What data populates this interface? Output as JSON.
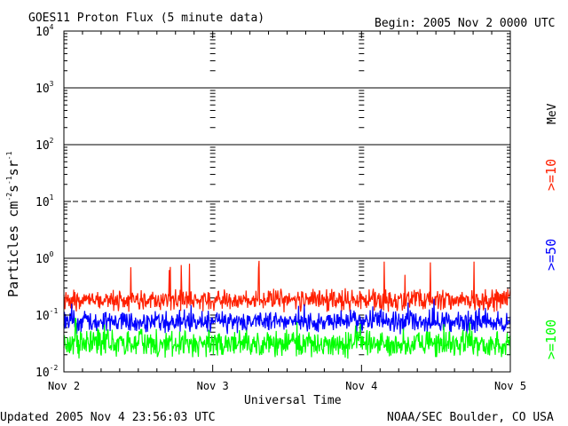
{
  "chart_data": {
    "type": "line",
    "title": "GOES11 Proton Flux (5 minute data)",
    "begin_label": "Begin: 2005 Nov 2 0000 UTC",
    "xlabel": "Universal Time",
    "ylabel": "Particles cm-2 s-1 sr-1",
    "ylabel_parts": {
      "base": "Particles cm",
      "exp1": "-2",
      "s": "s",
      "exp2": "-1",
      "sr": "sr",
      "exp3": "-1"
    },
    "y_scale": "log",
    "ylim": [
      0.01,
      10000
    ],
    "y_ticks": [
      {
        "base": "10",
        "exp": "-2",
        "value": 0.01
      },
      {
        "base": "10",
        "exp": "-1",
        "value": 0.1
      },
      {
        "base": "10",
        "exp": "0",
        "value": 1
      },
      {
        "base": "10",
        "exp": "1",
        "value": 10
      },
      {
        "base": "10",
        "exp": "2",
        "value": 100
      },
      {
        "base": "10",
        "exp": "3",
        "value": 1000
      },
      {
        "base": "10",
        "exp": "4",
        "value": 10000
      }
    ],
    "x_ticks": [
      "Nov 2",
      "Nov 3",
      "Nov 4",
      "Nov 5"
    ],
    "xlim_days": [
      0,
      3
    ],
    "threshold_lines": [
      {
        "value": 1,
        "style": "solid"
      },
      {
        "value": 10,
        "style": "dashed"
      },
      {
        "value": 100,
        "style": "solid"
      },
      {
        "value": 1000,
        "style": "solid"
      }
    ],
    "series": [
      {
        "name": ">=10",
        "color": "#ff2000",
        "level_range": [
          0.11,
          0.3
        ],
        "spike_max": 0.9
      },
      {
        "name": ">=50",
        "color": "#0000ff",
        "level_range": [
          0.045,
          0.13
        ],
        "spike_max": 0.2
      },
      {
        "name": ">=100",
        "color": "#00ff00",
        "level_range": [
          0.017,
          0.06
        ],
        "spike_max": 0.09
      }
    ],
    "unit_label": "MeV"
  },
  "footer": {
    "updated": "Updated 2005 Nov  4 23:56:03 UTC",
    "credit": "NOAA/SEC Boulder, CO USA"
  }
}
